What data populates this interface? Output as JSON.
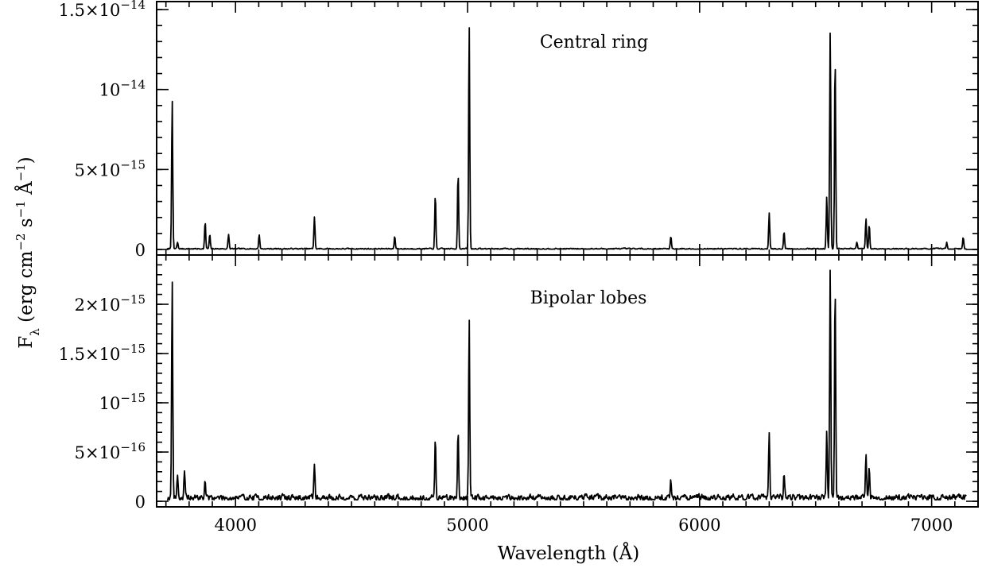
{
  "chart_data": {
    "type": "line",
    "xlabel": "Wavelength (Å)",
    "ylabel": "F_λ (erg cm^-2 s^-1 Å^-1)",
    "xlim": [
      3660,
      7200
    ],
    "x_major_ticks": [
      4000,
      5000,
      6000,
      7000
    ],
    "x_minor_step": 100,
    "panels": [
      {
        "label": "Central ring",
        "ylim": [
          0,
          1.55e-14
        ],
        "y_ticks": [
          {
            "value": 0,
            "mantissa": "0",
            "exponent": ""
          },
          {
            "value": 5e-15,
            "mantissa": "5×10",
            "exponent": "−15"
          },
          {
            "value": 1e-14,
            "mantissa": "10",
            "exponent": "−14"
          },
          {
            "value": 1.5e-14,
            "mantissa": "1.5×10",
            "exponent": "−14"
          }
        ],
        "y_minor_step": 1e-15,
        "noise": 1.5e-16,
        "seed": 7,
        "lines": [
          {
            "x": 3727,
            "y": 9.4e-15
          },
          {
            "x": 3750,
            "y": 4e-16
          },
          {
            "x": 3869,
            "y": 1.7e-15
          },
          {
            "x": 3889,
            "y": 9e-16
          },
          {
            "x": 3970,
            "y": 9e-16
          },
          {
            "x": 4102,
            "y": 9e-16
          },
          {
            "x": 4340,
            "y": 2e-15
          },
          {
            "x": 4686,
            "y": 8e-16
          },
          {
            "x": 4861,
            "y": 3.4e-15
          },
          {
            "x": 4959,
            "y": 4.8e-15
          },
          {
            "x": 5007,
            "y": 1.41e-14
          },
          {
            "x": 5876,
            "y": 8e-16
          },
          {
            "x": 6300,
            "y": 2.2e-15
          },
          {
            "x": 6364,
            "y": 1.1e-15
          },
          {
            "x": 6548,
            "y": 3.3e-15
          },
          {
            "x": 6563,
            "y": 1.38e-14
          },
          {
            "x": 6584,
            "y": 1.22e-14
          },
          {
            "x": 6678,
            "y": 4e-16
          },
          {
            "x": 6717,
            "y": 1.9e-15
          },
          {
            "x": 6731,
            "y": 1.5e-15
          },
          {
            "x": 7065,
            "y": 4e-16
          },
          {
            "x": 7136,
            "y": 7e-16
          }
        ]
      },
      {
        "label": "Bipolar lobes",
        "ylim": [
          0,
          2.5e-15
        ],
        "y_ticks": [
          {
            "value": 0,
            "mantissa": "0",
            "exponent": ""
          },
          {
            "value": 5e-16,
            "mantissa": "5×10",
            "exponent": "−16"
          },
          {
            "value": 1e-15,
            "mantissa": "10",
            "exponent": "−15"
          },
          {
            "value": 1.5e-15,
            "mantissa": "1.5×10",
            "exponent": "−15"
          },
          {
            "value": 2e-15,
            "mantissa": "2×10",
            "exponent": "−15"
          }
        ],
        "y_minor_step": 1e-16,
        "noise": 1.3e-16,
        "seed": 19,
        "lines": [
          {
            "x": 3727,
            "y": 2.24e-15
          },
          {
            "x": 3750,
            "y": 2.5e-16
          },
          {
            "x": 3780,
            "y": 2.6e-16
          },
          {
            "x": 3869,
            "y": 1.8e-16
          },
          {
            "x": 4340,
            "y": 3.6e-16
          },
          {
            "x": 4861,
            "y": 6e-16
          },
          {
            "x": 4959,
            "y": 6.9e-16
          },
          {
            "x": 5007,
            "y": 1.82e-15
          },
          {
            "x": 5876,
            "y": 1.8e-16
          },
          {
            "x": 6300,
            "y": 6.6e-16
          },
          {
            "x": 6364,
            "y": 2.6e-16
          },
          {
            "x": 6548,
            "y": 7e-16
          },
          {
            "x": 6563,
            "y": 2.38e-15
          },
          {
            "x": 6584,
            "y": 2.18e-15
          },
          {
            "x": 6717,
            "y": 4.6e-16
          },
          {
            "x": 6731,
            "y": 3.2e-16
          }
        ]
      }
    ]
  }
}
